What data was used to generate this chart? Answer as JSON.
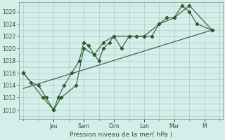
{
  "bg_color": "#d4eeea",
  "grid_color": "#aaccca",
  "line_color": "#2d5a2d",
  "marker_color": "#2d5a2d",
  "x_ticks_pos": [
    2,
    4,
    6,
    8,
    10,
    12
  ],
  "x_ticks_labels": [
    "Jeu",
    "Sam",
    "Dim",
    "Lun",
    "Mar",
    "M"
  ],
  "xlabel": "Pression niveau de la mer( hPa )",
  "ylim": [
    1008.5,
    1027.5
  ],
  "xlim": [
    -0.3,
    13.2
  ],
  "yticks": [
    1010,
    1012,
    1014,
    1016,
    1018,
    1020,
    1022,
    1024,
    1026
  ],
  "line1_x": [
    0.0,
    0.5,
    1.0,
    1.5,
    2.0,
    2.3,
    2.7,
    3.2,
    3.7,
    4.0,
    4.3,
    4.7,
    5.0,
    5.3,
    5.7,
    6.0,
    6.5,
    7.0,
    7.5,
    8.0,
    8.5,
    9.0,
    9.5,
    10.0,
    10.5,
    11.0,
    11.5,
    12.5
  ],
  "line1_y": [
    1016,
    1014.5,
    1014,
    1012,
    1010,
    1012,
    1014,
    1016,
    1018,
    1021,
    1020.5,
    1019,
    1018,
    1020,
    1021,
    1022,
    1020,
    1022,
    1022,
    1022,
    1022,
    1024,
    1025,
    1025,
    1027,
    1026,
    1024,
    1023
  ],
  "line2_x": [
    0.0,
    1.3,
    2.0,
    2.5,
    3.5,
    4.0,
    4.7,
    5.3,
    6.0,
    7.0,
    8.0,
    9.0,
    10.0,
    11.0,
    12.5
  ],
  "line2_y": [
    1016,
    1012,
    1010,
    1012,
    1014,
    1020,
    1019,
    1021,
    1022,
    1022,
    1022,
    1024,
    1025,
    1027,
    1023
  ],
  "line3_x": [
    0.0,
    12.5
  ],
  "line3_y": [
    1013.5,
    1023
  ]
}
